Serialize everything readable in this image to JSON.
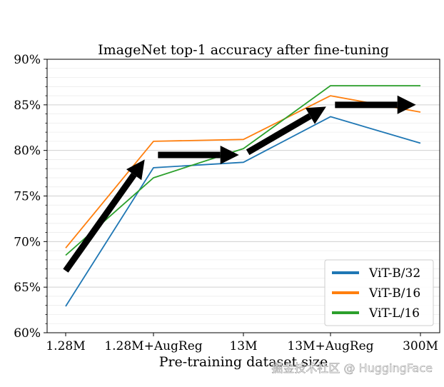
{
  "watermark": "掘金技术社区 @ HuggingFace",
  "chart_data": {
    "type": "line",
    "title": "ImageNet top-1 accuracy after fine-tuning",
    "xlabel": "Pre-training dataset size",
    "ylabel": "",
    "categories": [
      "1.28M",
      "1.28M+AugReg",
      "13M",
      "13M+AugReg",
      "300M"
    ],
    "ylim": [
      60,
      90
    ],
    "yticks": [
      60,
      65,
      70,
      75,
      80,
      85,
      90
    ],
    "ytick_labels": [
      "60%",
      "65%",
      "70%",
      "75%",
      "80%",
      "85%",
      "90%"
    ],
    "grid": true,
    "legend_position": "bottom-right",
    "series": [
      {
        "name": "ViT-B/32",
        "color": "#1f77b4",
        "values": [
          62.9,
          78.1,
          78.7,
          83.7,
          80.8
        ]
      },
      {
        "name": "ViT-B/16",
        "color": "#ff7f0e",
        "values": [
          69.3,
          81.0,
          81.2,
          86.0,
          84.2
        ]
      },
      {
        "name": "ViT-L/16",
        "color": "#2ca02c",
        "values": [
          68.5,
          77.0,
          80.2,
          87.1,
          87.1
        ]
      }
    ],
    "annotations": [
      {
        "type": "arrow",
        "from": [
          0.0,
          66.8
        ],
        "to": [
          0.9,
          79.0
        ],
        "color": "#000000"
      },
      {
        "type": "arrow",
        "from": [
          1.05,
          79.5
        ],
        "to": [
          1.95,
          79.5
        ],
        "color": "#000000"
      },
      {
        "type": "arrow",
        "from": [
          2.05,
          79.8
        ],
        "to": [
          2.95,
          84.8
        ],
        "color": "#000000"
      },
      {
        "type": "arrow",
        "from": [
          3.05,
          85.0
        ],
        "to": [
          3.95,
          85.0
        ],
        "color": "#000000"
      }
    ]
  }
}
